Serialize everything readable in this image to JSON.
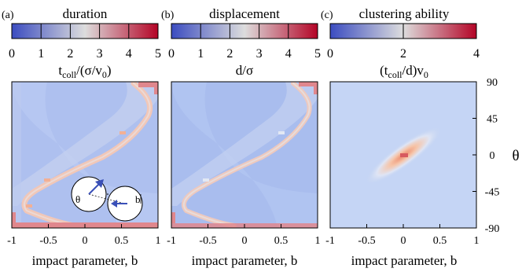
{
  "chart_data": [
    {
      "type": "heatmap",
      "panel_letter": "(a)",
      "title": "duration",
      "colorbar": {
        "ticks": [
          "0",
          "1",
          "2",
          "3",
          "4",
          "5"
        ],
        "range": [
          0,
          5
        ],
        "label": "t_coll/(σ/v_0)",
        "colors": [
          "#3b4cc0",
          "#dddddd",
          "#b40426"
        ]
      },
      "xlabel": "impact parameter, b",
      "x_ticks": [
        "-1",
        "-0.5",
        "0",
        "0.5",
        "1"
      ],
      "xlim": [
        -1,
        1
      ],
      "ylim": [
        -90,
        90
      ],
      "grid": false,
      "inset_labels": {
        "theta": "θ",
        "b": "b"
      }
    },
    {
      "type": "heatmap",
      "panel_letter": "(b)",
      "title": "displacement",
      "colorbar": {
        "ticks": [
          "0",
          "1",
          "2",
          "3",
          "4",
          "5"
        ],
        "range": [
          0,
          5
        ],
        "label": "d/σ",
        "colors": [
          "#3b4cc0",
          "#dddddd",
          "#b40426"
        ]
      },
      "xlabel": "impact parameter, b",
      "x_ticks": [
        "-1",
        "-0.5",
        "0",
        "0.5",
        "1"
      ],
      "xlim": [
        -1,
        1
      ],
      "ylim": [
        -90,
        90
      ],
      "grid": false
    },
    {
      "type": "heatmap",
      "panel_letter": "(c)",
      "title": "clustering ability",
      "colorbar": {
        "ticks": [
          "0",
          "2",
          "4"
        ],
        "range": [
          0,
          4
        ],
        "label": "(t_coll/d)v_0",
        "colors": [
          "#3b4cc0",
          "#dddddd",
          "#b40426"
        ]
      },
      "xlabel": "impact parameter, b",
      "x_ticks": [
        "-1",
        "-0.5",
        "0",
        "0.5",
        "1"
      ],
      "xlim": [
        -1,
        1
      ],
      "ylabel": "θ",
      "y_ticks": [
        "90",
        "45",
        "0",
        "-45",
        "-90"
      ],
      "ylim": [
        -90,
        90
      ],
      "grid": false
    }
  ]
}
